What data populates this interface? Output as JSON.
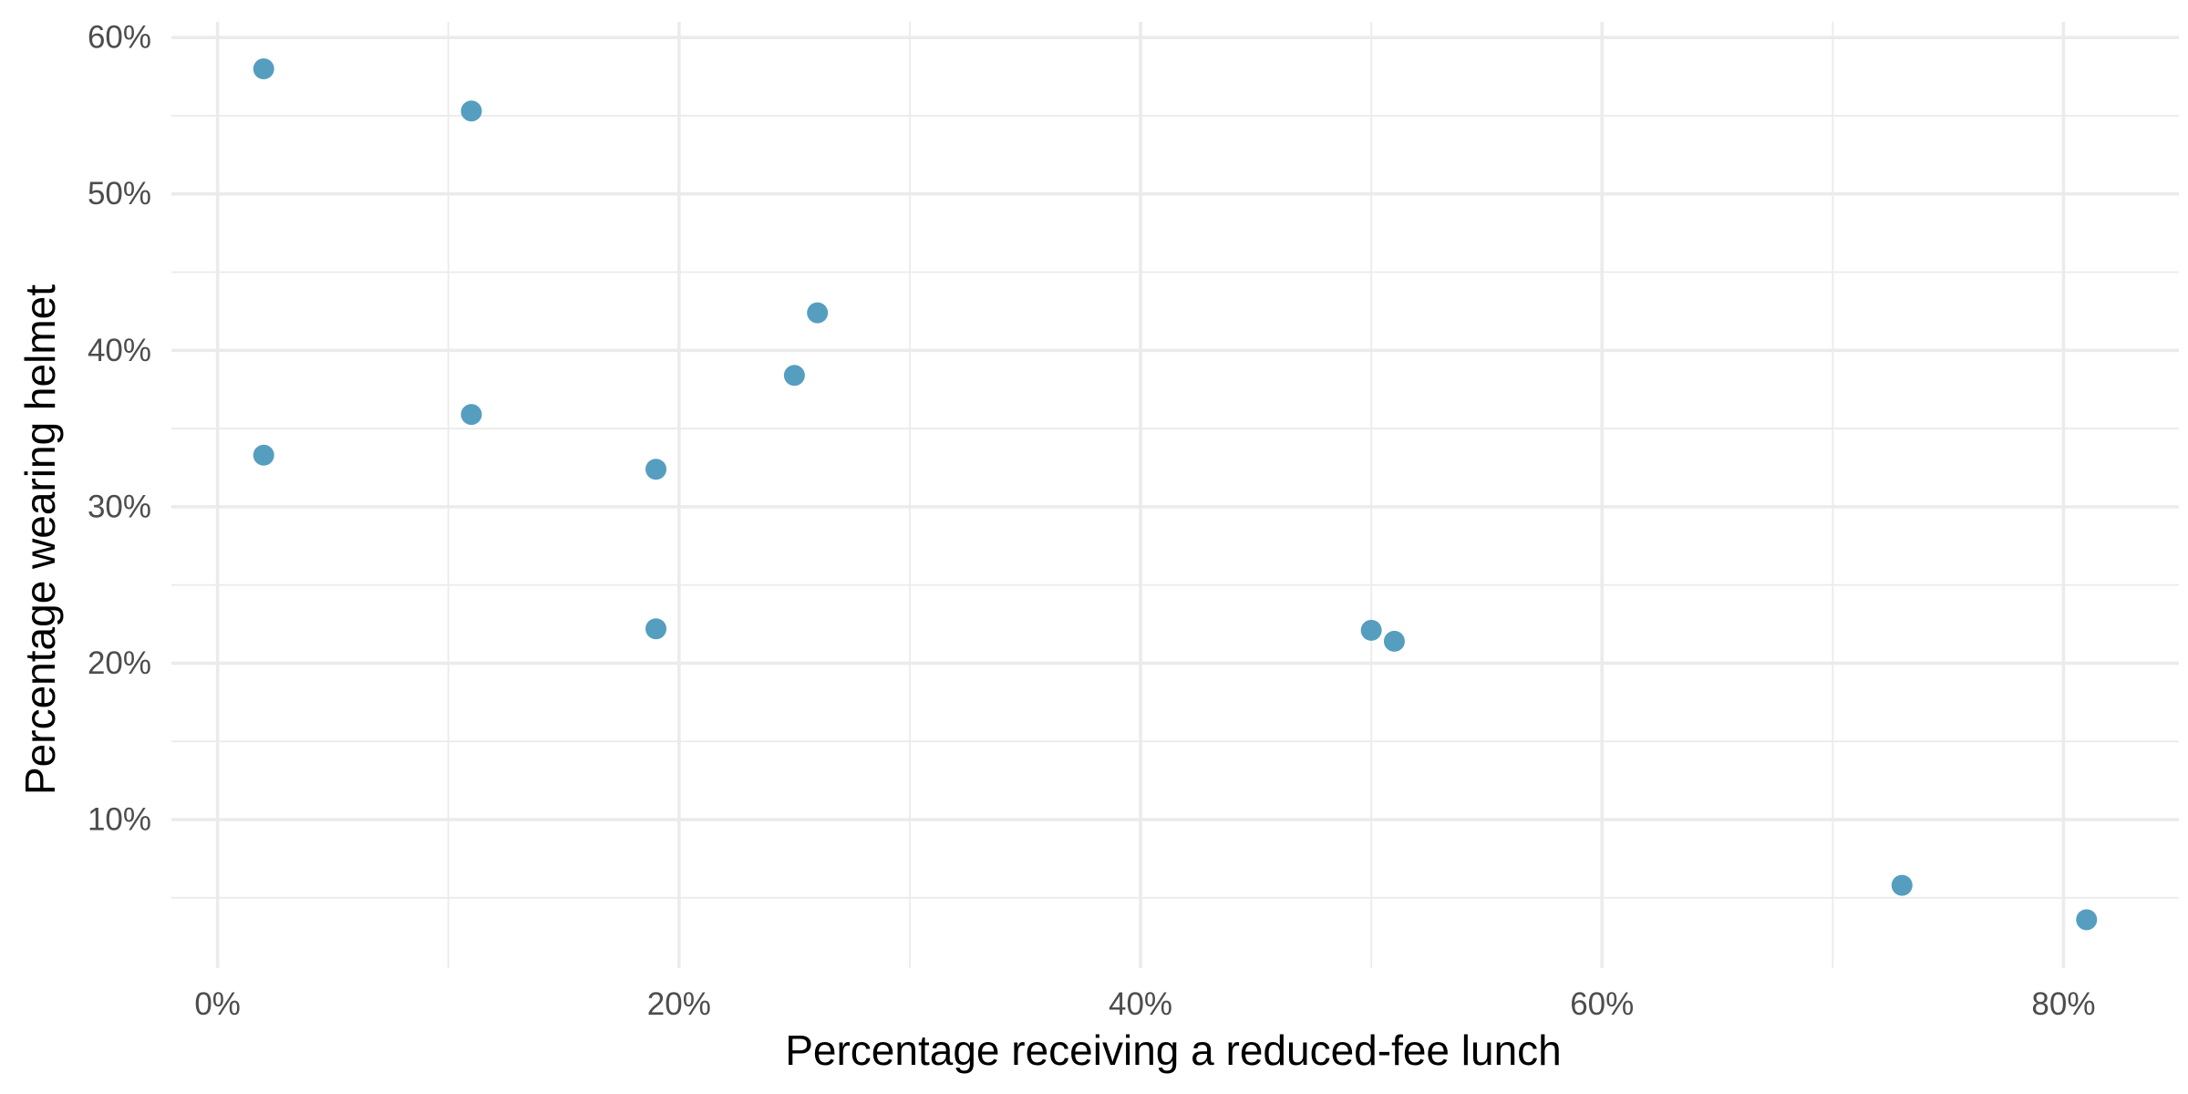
{
  "chart_data": {
    "type": "scatter",
    "title": "",
    "xlabel": "Percentage receiving a reduced-fee lunch",
    "ylabel": "Percentage wearing helmet",
    "xlim": [
      -2,
      85
    ],
    "ylim": [
      0.5,
      61
    ],
    "x_ticks": [
      0,
      20,
      40,
      60,
      80
    ],
    "x_tick_labels": [
      "0%",
      "20%",
      "40%",
      "60%",
      "80%"
    ],
    "x_minor_ticks": [
      10,
      30,
      50,
      70
    ],
    "y_ticks": [
      10,
      20,
      30,
      40,
      50,
      60
    ],
    "y_tick_labels": [
      "10%",
      "20%",
      "30%",
      "40%",
      "50%",
      "60%"
    ],
    "y_minor_ticks": [
      5,
      15,
      25,
      35,
      45,
      55
    ],
    "grid": true,
    "point_color": "#569ebf",
    "points": [
      {
        "x": 2,
        "y": 58
      },
      {
        "x": 11,
        "y": 55.3
      },
      {
        "x": 26,
        "y": 42.4
      },
      {
        "x": 25,
        "y": 38.4
      },
      {
        "x": 11,
        "y": 35.9
      },
      {
        "x": 2,
        "y": 33.3
      },
      {
        "x": 19,
        "y": 32.4
      },
      {
        "x": 19,
        "y": 22.2
      },
      {
        "x": 50,
        "y": 22.1
      },
      {
        "x": 51,
        "y": 21.4
      },
      {
        "x": 73,
        "y": 5.8
      },
      {
        "x": 81,
        "y": 3.6
      }
    ]
  }
}
